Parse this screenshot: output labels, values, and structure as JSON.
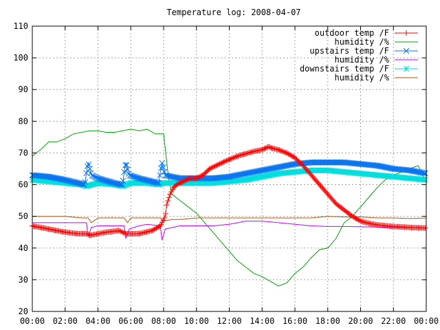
{
  "chart_data": {
    "type": "line",
    "title": "Temperature log: 2008-04-07",
    "xlabel": "",
    "ylabel": "",
    "xlim": [
      0,
      24
    ],
    "ylim": [
      20,
      110
    ],
    "grid": true,
    "legend_position": "top-right",
    "x_ticks": [
      "00:00",
      "02:00",
      "04:00",
      "06:00",
      "08:00",
      "10:00",
      "12:00",
      "14:00",
      "16:00",
      "18:00",
      "20:00",
      "22:00",
      "00:00"
    ],
    "y_ticks": [
      "20",
      "30",
      "40",
      "50",
      "60",
      "70",
      "80",
      "90",
      "100",
      "110"
    ],
    "series": [
      {
        "name": "outdoor temp /F",
        "color": "#ff0000",
        "marker": "plus",
        "x": [
          0,
          1,
          2,
          2.8,
          3.4,
          3.5,
          4.5,
          5.3,
          5.7,
          6.5,
          7.3,
          7.8,
          8.1,
          8.2,
          8.4,
          8.6,
          8.8,
          9.2,
          9.6,
          10,
          10.4,
          10.8,
          11.2,
          11.8,
          12.5,
          13.5,
          14,
          14.4,
          14.6,
          15,
          15.5,
          16,
          16.5,
          17,
          17.5,
          18,
          18.5,
          19,
          19.5,
          20,
          20.5,
          21,
          22,
          23,
          24
        ],
        "y": [
          47,
          46,
          45,
          44.5,
          44.5,
          44,
          45,
          45.5,
          44.5,
          44.5,
          45.5,
          47,
          50,
          54,
          57,
          59,
          60,
          61,
          62,
          62,
          63,
          65,
          66,
          67.5,
          69,
          70.5,
          71,
          72,
          71.5,
          71,
          70,
          68.5,
          66,
          63,
          60,
          57,
          54,
          52,
          50,
          48.5,
          47.8,
          47.3,
          46.8,
          46.5,
          46.3
        ]
      },
      {
        "name": "humidity /%",
        "color": "#00a000",
        "marker": "none",
        "x": [
          0,
          0.5,
          1,
          1.5,
          2,
          2.5,
          3,
          3.5,
          4,
          4.5,
          5,
          5.5,
          6,
          6.5,
          7,
          7.5,
          8,
          8.3,
          8.5,
          9,
          9.5,
          10,
          10.5,
          11,
          11.5,
          12,
          12.5,
          13,
          13.5,
          14,
          14.5,
          15,
          15.5,
          16,
          16.5,
          17,
          17.5,
          18,
          18.5,
          19,
          19.5,
          20,
          20.5,
          21,
          21.5,
          22,
          22.5,
          23,
          23.5,
          24
        ],
        "y": [
          69,
          71,
          73.5,
          73.5,
          74.5,
          76,
          76.5,
          77,
          77,
          76.5,
          76.5,
          77,
          77.5,
          77,
          77.5,
          76,
          76,
          62,
          57,
          55,
          53,
          51,
          48,
          45,
          42,
          39,
          36,
          34,
          32,
          31,
          29.5,
          28,
          29,
          32,
          34,
          37,
          39.5,
          40,
          43,
          48,
          50,
          53,
          56,
          59,
          61.5,
          63,
          64,
          65,
          66,
          61
        ]
      },
      {
        "name": "upstairs temp /F",
        "color": "#0a75ee",
        "marker": "cross",
        "x": [
          0,
          1,
          2,
          3.2,
          3.3,
          3.4,
          3.6,
          4,
          5,
          5.5,
          5.6,
          5.7,
          5.9,
          6.5,
          7.7,
          7.8,
          7.9,
          8.1,
          8.5,
          9,
          10,
          11,
          12,
          13,
          14,
          15,
          16,
          17,
          18,
          19,
          20,
          21,
          22,
          23,
          24
        ],
        "y": [
          63,
          62.5,
          61.5,
          60,
          64,
          67,
          63,
          62,
          60.5,
          60,
          64,
          67,
          63,
          62,
          60.5,
          64,
          67,
          63,
          62.5,
          62,
          62,
          62,
          62.5,
          63.5,
          64.5,
          65.5,
          66.5,
          67,
          67,
          67,
          66.5,
          66,
          65,
          64.5,
          63.5
        ]
      },
      {
        "name": "humidity /%",
        "color": "#c000ff",
        "marker": "none",
        "x": [
          0,
          1,
          2,
          3,
          3.3,
          3.4,
          3.6,
          4,
          5,
          5.6,
          5.7,
          5.9,
          6.5,
          7,
          7.8,
          7.9,
          8.1,
          9,
          10,
          10.5,
          11,
          12,
          13,
          14,
          15,
          16,
          17,
          18,
          19,
          20,
          21,
          22,
          23,
          24
        ],
        "y": [
          48,
          48,
          48,
          48,
          48,
          43.5,
          46.5,
          47,
          47,
          47,
          43,
          46,
          47,
          47.5,
          47,
          42.5,
          46,
          47,
          47,
          47,
          47,
          47.5,
          48.5,
          48.5,
          48,
          47.5,
          47,
          46.8,
          46.8,
          46.7,
          46.6,
          46.5,
          46.5,
          46.3
        ]
      },
      {
        "name": "downstairs temp /F",
        "color": "#00dddd",
        "marker": "star",
        "x": [
          0,
          1,
          2,
          3,
          3.3,
          4,
          5,
          5.5,
          6,
          7,
          7.7,
          8,
          8.5,
          9,
          10,
          11,
          12,
          13,
          14,
          15,
          16,
          17,
          18,
          19,
          20,
          21,
          22,
          23,
          24
        ],
        "y": [
          61.5,
          61,
          60.5,
          60,
          59.5,
          60.5,
          60,
          59.5,
          60.5,
          60.5,
          60,
          60.5,
          60.5,
          60.5,
          60.5,
          60.5,
          61,
          61.5,
          62.5,
          63.5,
          64,
          64.5,
          64.5,
          64,
          63.5,
          63,
          62.5,
          62,
          61.5
        ]
      },
      {
        "name": "humidity /%",
        "color": "#b05000",
        "marker": "none",
        "x": [
          0,
          1,
          2,
          3,
          3.4,
          3.6,
          4,
          5,
          5.6,
          5.8,
          6,
          7,
          7.8,
          8,
          8.5,
          9,
          10,
          11,
          12,
          13,
          14,
          15,
          16,
          17,
          18,
          19,
          20,
          21,
          22,
          23,
          24
        ],
        "y": [
          50,
          50,
          50,
          49.5,
          49.5,
          48,
          49.5,
          49.5,
          49.5,
          48,
          49.5,
          49.5,
          49.5,
          48.5,
          49,
          49,
          49.5,
          49.5,
          49.5,
          49.5,
          49.5,
          49.5,
          49.5,
          49.5,
          50,
          49.8,
          49.8,
          49.5,
          49.5,
          49.3,
          49.5
        ]
      }
    ]
  }
}
